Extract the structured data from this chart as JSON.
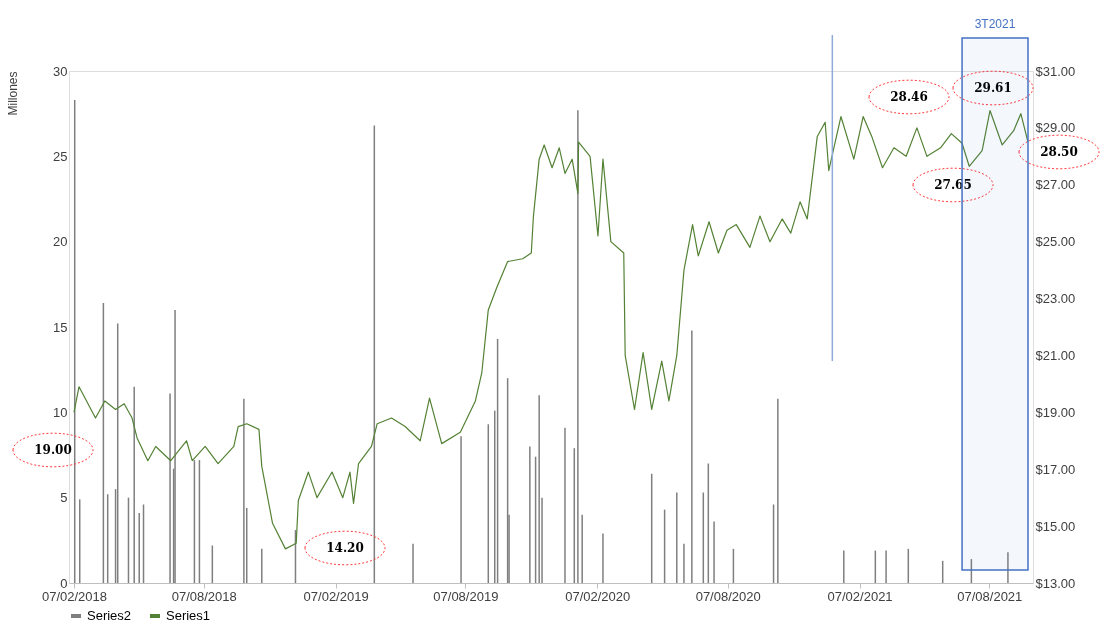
{
  "chart_data": {
    "type": "bar",
    "ylabel": "Millones",
    "xlim": [
      "2018-02-07",
      "2021-09-30"
    ],
    "xticks": [
      {
        "value": "2018-02-07",
        "label": "07/02/2018"
      },
      {
        "value": "2018-08-07",
        "label": "07/08/2018"
      },
      {
        "value": "2019-02-07",
        "label": "07/02/2019"
      },
      {
        "value": "2019-08-07",
        "label": "07/08/2019"
      },
      {
        "value": "2020-02-07",
        "label": "07/02/2020"
      },
      {
        "value": "2020-08-07",
        "label": "07/08/2020"
      },
      {
        "value": "2021-02-07",
        "label": "07/02/2021"
      },
      {
        "value": "2021-08-07",
        "label": "07/08/2021"
      }
    ],
    "ylim": [
      0,
      30
    ],
    "yticks": [
      0,
      5,
      10,
      15,
      20,
      25,
      30
    ],
    "y2lim": [
      13,
      31
    ],
    "y2ticks": [
      {
        "value": 13,
        "label": "$13.00"
      },
      {
        "value": 15,
        "label": "$15.00"
      },
      {
        "value": 17,
        "label": "$17.00"
      },
      {
        "value": 19,
        "label": "$19.00"
      },
      {
        "value": 21,
        "label": "$21.00"
      },
      {
        "value": 23,
        "label": "$23.00"
      },
      {
        "value": 25,
        "label": "$25.00"
      },
      {
        "value": 27,
        "label": "$27.00"
      },
      {
        "value": 29,
        "label": "$29.00"
      },
      {
        "value": 31,
        "label": "$31.00"
      }
    ],
    "grid": false,
    "legend": "bottom",
    "marker": "none",
    "line_style": "solid",
    "series": [
      {
        "name": "Series2",
        "color": "#7f7f7f",
        "x": [
          "2018-02-08",
          "2018-02-15",
          "2018-03-20",
          "2018-03-26",
          "2018-04-06",
          "2018-04-09",
          "2018-04-24",
          "2018-05-02",
          "2018-05-09",
          "2018-05-15",
          "2018-06-21",
          "2018-06-26",
          "2018-06-28",
          "2018-07-25",
          "2018-08-01",
          "2018-08-19",
          "2018-10-02",
          "2018-10-06",
          "2018-10-27",
          "2018-12-13",
          "2019-04-02",
          "2019-05-26",
          "2019-08-01",
          "2019-09-08",
          "2019-09-17",
          "2019-09-21",
          "2019-10-05",
          "2019-10-07",
          "2019-11-05",
          "2019-11-13",
          "2019-11-18",
          "2019-11-22",
          "2019-12-24",
          "2020-01-06",
          "2020-01-11",
          "2020-01-17",
          "2020-02-15",
          "2020-04-23",
          "2020-05-11",
          "2020-05-28",
          "2020-06-07",
          "2020-06-18",
          "2020-07-04",
          "2020-07-11",
          "2020-07-19",
          "2020-08-15",
          "2020-10-10",
          "2020-10-16",
          "2021-01-16",
          "2021-03-01",
          "2021-03-16",
          "2021-04-16",
          "2021-06-03",
          "2021-07-13",
          "2021-09-02"
        ],
        "values": [
          28.3,
          4.9,
          16.4,
          5.2,
          5.5,
          15.2,
          5.0,
          11.5,
          4.1,
          4.6,
          11.1,
          6.7,
          16.0,
          7.2,
          7.2,
          2.2,
          10.8,
          4.4,
          2.0,
          3.1,
          26.8,
          2.3,
          8.6,
          9.3,
          10.1,
          14.3,
          12.0,
          4.0,
          8.0,
          7.4,
          11.0,
          5.0,
          9.1,
          7.9,
          27.7,
          4.0,
          2.9,
          6.4,
          4.3,
          5.3,
          2.3,
          14.8,
          5.3,
          7.0,
          3.6,
          2.0,
          4.6,
          10.8,
          1.9,
          1.9,
          1.9,
          2.0,
          1.3,
          1.4,
          1.8
        ]
      },
      {
        "name": "Series1",
        "type": "line",
        "color": "#548235",
        "axis": "y2",
        "x": [
          "2018-02-07",
          "2018-02-14",
          "2018-03-09",
          "2018-03-22",
          "2018-04-06",
          "2018-04-18",
          "2018-04-29",
          "2018-05-06",
          "2018-05-21",
          "2018-06-01",
          "2018-06-22",
          "2018-07-14",
          "2018-07-22",
          "2018-08-09",
          "2018-08-27",
          "2018-09-18",
          "2018-09-24",
          "2018-10-06",
          "2018-10-23",
          "2018-10-27",
          "2018-11-11",
          "2018-11-29",
          "2018-12-14",
          "2018-12-17",
          "2018-12-31",
          "2019-01-12",
          "2019-02-02",
          "2019-02-17",
          "2019-02-27",
          "2019-03-04",
          "2019-03-11",
          "2019-03-29",
          "2019-04-06",
          "2019-04-26",
          "2019-05-15",
          "2019-06-05",
          "2019-06-18",
          "2019-07-05",
          "2019-07-31",
          "2019-08-21",
          "2019-08-30",
          "2019-09-08",
          "2019-09-20",
          "2019-10-05",
          "2019-10-26",
          "2019-11-07",
          "2019-11-10",
          "2019-11-18",
          "2019-11-25",
          "2019-12-06",
          "2019-12-16",
          "2019-12-24",
          "2020-01-03",
          "2020-01-11",
          "2020-01-12",
          "2020-01-28",
          "2020-02-08",
          "2020-02-15",
          "2020-02-26",
          "2020-03-15",
          "2020-03-17",
          "2020-03-30",
          "2020-04-11",
          "2020-04-23",
          "2020-05-07",
          "2020-05-17",
          "2020-05-28",
          "2020-06-07",
          "2020-06-19",
          "2020-06-27",
          "2020-07-12",
          "2020-07-25",
          "2020-08-06",
          "2020-08-19",
          "2020-09-07",
          "2020-09-21",
          "2020-10-05",
          "2020-10-22",
          "2020-11-03",
          "2020-11-16",
          "2020-11-26",
          "2020-12-10",
          "2020-12-21",
          "2020-12-26",
          "2021-01-12",
          "2021-01-30",
          "2021-02-12",
          "2021-02-24",
          "2021-03-11",
          "2021-03-27",
          "2021-04-13",
          "2021-04-28",
          "2021-05-12",
          "2021-05-31",
          "2021-06-15",
          "2021-06-30",
          "2021-07-10",
          "2021-07-28",
          "2021-08-08",
          "2021-08-25",
          "2021-09-10",
          "2021-09-20",
          "2021-09-30"
        ],
        "values": [
          19.0,
          19.9,
          18.8,
          19.4,
          19.1,
          19.3,
          18.8,
          18.1,
          17.3,
          17.8,
          17.3,
          18.0,
          17.3,
          17.8,
          17.2,
          17.8,
          18.5,
          18.6,
          18.4,
          17.1,
          15.1,
          14.2,
          14.4,
          15.9,
          16.9,
          16.0,
          16.9,
          16.0,
          16.9,
          15.8,
          17.2,
          17.8,
          18.6,
          18.8,
          18.5,
          18.0,
          19.5,
          17.9,
          18.3,
          19.4,
          20.4,
          22.6,
          23.4,
          24.3,
          24.4,
          24.6,
          25.9,
          27.9,
          28.4,
          27.6,
          28.3,
          27.4,
          27.9,
          26.7,
          28.5,
          28.0,
          25.2,
          27.9,
          25.0,
          24.6,
          21.0,
          19.1,
          21.1,
          19.1,
          20.8,
          19.4,
          21.0,
          24.0,
          25.6,
          24.5,
          25.7,
          24.6,
          25.4,
          25.6,
          24.8,
          25.9,
          25.0,
          25.8,
          25.3,
          26.4,
          25.8,
          28.7,
          29.2,
          27.5,
          29.4,
          27.9,
          29.4,
          28.7,
          27.6,
          28.3,
          28.0,
          29.0,
          28.0,
          28.3,
          28.8,
          28.46,
          27.65,
          28.2,
          29.61,
          28.4,
          28.9,
          29.5,
          28.5
        ]
      }
    ],
    "ref_lines": [
      {
        "axis": "x",
        "value": "2020-12-31",
        "color": "#8eaadb"
      }
    ],
    "bands": [
      {
        "axis": "x",
        "from": "2021-06-30",
        "to": "2021-09-30",
        "label": "3T2021",
        "color": "#4472c4"
      }
    ],
    "annotations": [
      "19.00",
      "14.20",
      "28.46",
      "29.61",
      "27.65",
      "28.50"
    ]
  }
}
